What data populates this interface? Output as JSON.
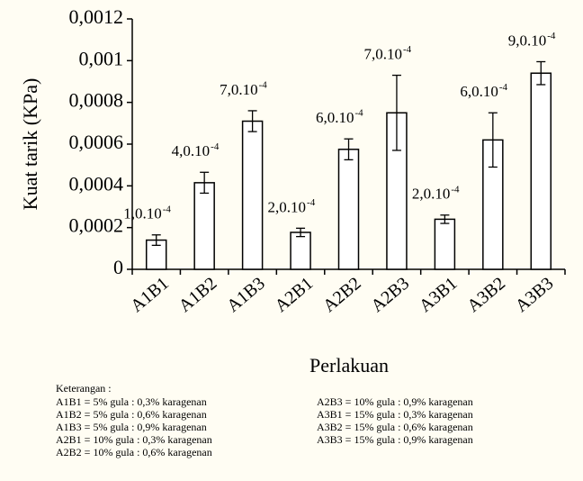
{
  "chart_data": {
    "type": "bar",
    "ylabel": "Kuat tarik (KPa)",
    "xlabel": "Perlakuan",
    "categories": [
      "A1B1",
      "A1B2",
      "A1B3",
      "A2B1",
      "A2B2",
      "A2B3",
      "A3B1",
      "A3B2",
      "A3B3"
    ],
    "values": [
      0.00014,
      0.000415,
      0.00071,
      0.000177,
      0.000575,
      0.00075,
      0.00024,
      0.00062,
      0.00094
    ],
    "errors": [
      2.5e-05,
      5e-05,
      5e-05,
      2e-05,
      5e-05,
      0.00018,
      2e-05,
      0.00013,
      5.5e-05
    ],
    "annotations": [
      {
        "text": "1,0.10",
        "sup": "-4"
      },
      {
        "text": "4,0.10",
        "sup": "-4"
      },
      {
        "text": "7,0.10",
        "sup": "-4"
      },
      {
        "text": "2,0.10",
        "sup": "-4"
      },
      {
        "text": "6,0.10",
        "sup": "-4"
      },
      {
        "text": "7,0.10",
        "sup": "-4"
      },
      {
        "text": "2,0.10",
        "sup": "-4"
      },
      {
        "text": "6,0.10",
        "sup": "-4"
      },
      {
        "text": "9,0.10",
        "sup": "-4"
      }
    ],
    "color": "#ffffff",
    "ylim": [
      0,
      0.0012
    ],
    "yticks": [
      0,
      {
        "value": 0.0002,
        "label": "0,0002"
      },
      {
        "value": 0.0004,
        "label": "0,0004"
      },
      {
        "value": 0.0006,
        "label": "0,0006"
      },
      {
        "value": 0.0008,
        "label": "0,0008"
      },
      {
        "value": 0.001,
        "label": "0,001"
      },
      {
        "value": 0.0012,
        "label": "0,0012"
      }
    ],
    "grid": false
  },
  "notes": {
    "title": "Keterangan :",
    "items": [
      "A1B1 = 5% gula : 0,3% karagenan",
      "A1B2 = 5% gula : 0,6% karagenan",
      "A1B3 = 5% gula : 0,9% karagenan",
      "A2B1 = 10% gula : 0,3% karagenan",
      "A2B2 = 10% gula : 0,6% karagenan",
      "A2B3 = 10% gula : 0,9% karagenan",
      "A3B1 = 15% gula : 0,3% karagenan",
      "A3B2 = 15% gula : 0,6% karagenan",
      "A3B3 = 15% gula : 0,9% karagenan"
    ]
  }
}
